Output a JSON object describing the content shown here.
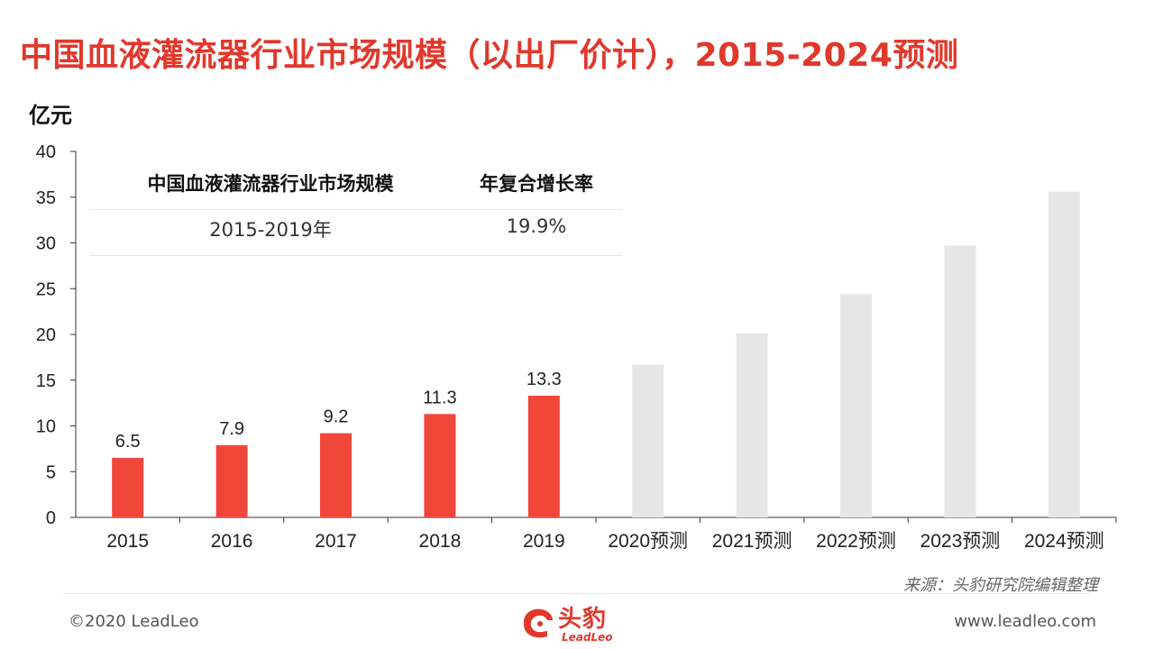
{
  "header": {
    "title": "中国血液灌流器行业市场规模（以出厂价计），2015-2024预测",
    "unit": "亿元"
  },
  "cagr_table": {
    "header_label": "中国血液灌流器行业市场规模",
    "header_value": "年复合增长率",
    "row_label": "2015-2019年",
    "row_value": "19.9%"
  },
  "chart_data": {
    "type": "bar",
    "title": "中国血液灌流器行业市场规模（以出厂价计），2015-2024预测",
    "ylabel": "亿元",
    "xlabel": "",
    "ylim": [
      0,
      40
    ],
    "yticks": [
      0,
      5,
      10,
      15,
      20,
      25,
      30,
      35,
      40
    ],
    "grid": false,
    "categories": [
      "2015",
      "2016",
      "2017",
      "2018",
      "2019",
      "2020预测",
      "2021预测",
      "2022预测",
      "2023预测",
      "2024预测"
    ],
    "values": [
      6.5,
      7.9,
      9.2,
      11.3,
      13.3,
      16.7,
      20.1,
      24.4,
      29.7,
      35.6
    ],
    "data_labels": [
      "6.5",
      "7.9",
      "9.2",
      "11.3",
      "13.3",
      "",
      "",
      "",
      "",
      ""
    ],
    "bar_colors": [
      "#f1463a",
      "#f1463a",
      "#f1463a",
      "#f1463a",
      "#f1463a",
      "#e6e6e6",
      "#e6e6e6",
      "#e6e6e6",
      "#e6e6e6",
      "#e6e6e6"
    ]
  },
  "footer": {
    "source": "来源：头豹研究院编辑整理",
    "copyright": "©2020 LeadLeo",
    "website": "www.leadleo.com",
    "logo_cn": "头豹",
    "logo_en": "LeadLeo"
  },
  "colors": {
    "accent": "#e1382c",
    "actual_bar": "#f1463a",
    "forecast_bar": "#e6e6e6"
  }
}
